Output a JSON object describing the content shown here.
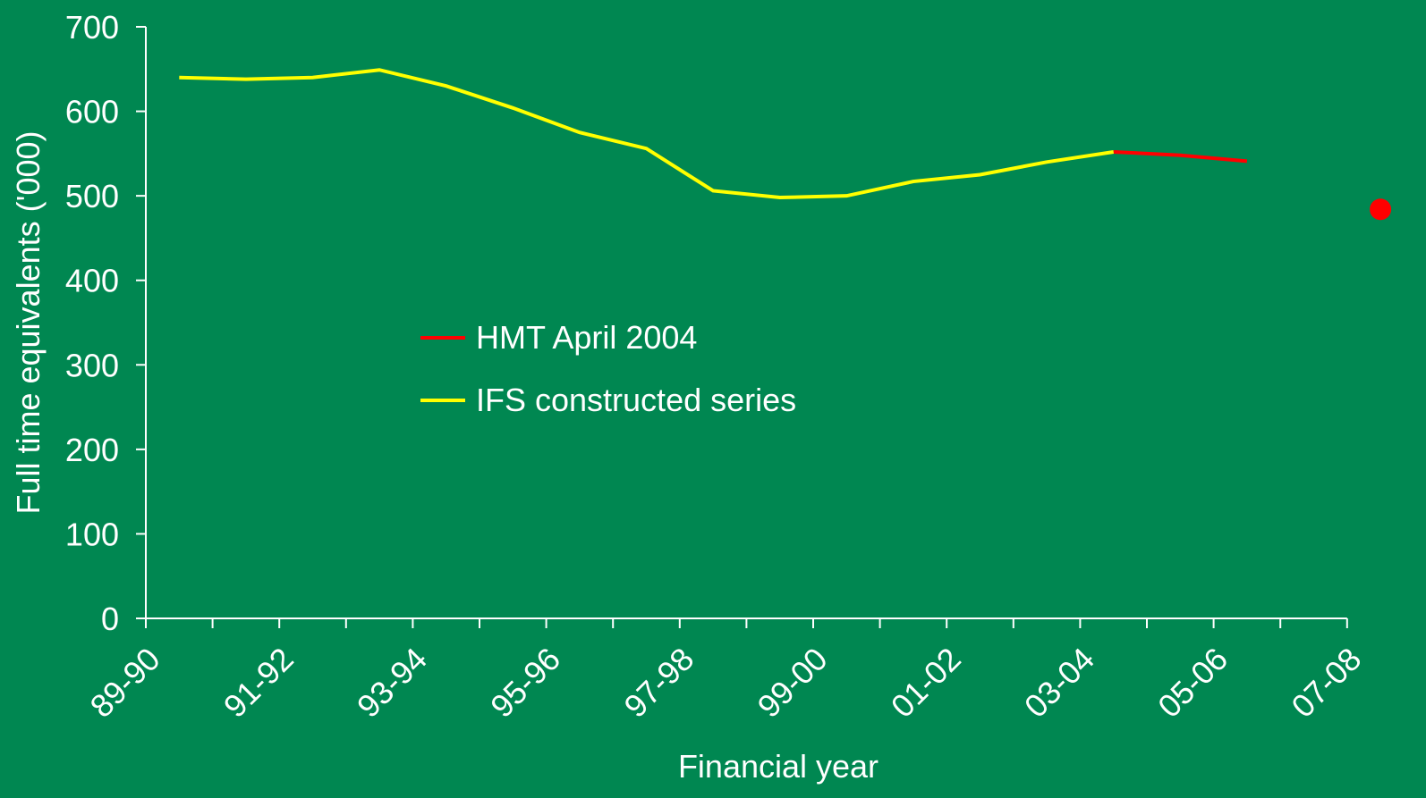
{
  "chart_data": {
    "type": "line",
    "categories": [
      "89-90",
      null,
      "91-92",
      null,
      "93-94",
      null,
      "95-96",
      null,
      "97-98",
      null,
      "99-00",
      null,
      "01-02",
      null,
      "03-04",
      null,
      "05-06",
      null,
      "07-08"
    ],
    "series": [
      {
        "name": "HMT April 2004",
        "color": "#ff0000",
        "values": [
          null,
          null,
          null,
          null,
          null,
          null,
          null,
          null,
          null,
          null,
          null,
          null,
          null,
          null,
          552,
          548,
          541,
          null,
          484
        ]
      },
      {
        "name": "IFS constructed series",
        "color": "#ffff00",
        "values": [
          640,
          638,
          640,
          649,
          630,
          604,
          575,
          556,
          506,
          498,
          500,
          517,
          525,
          540,
          552,
          null,
          null,
          null,
          null
        ]
      }
    ],
    "ylim": [
      0,
      700
    ],
    "yticks": [
      0,
      100,
      200,
      300,
      400,
      500,
      600,
      700
    ],
    "ylabel": "Full time equivalents ('000)",
    "xlabel": "Financial year",
    "grid": false
  }
}
